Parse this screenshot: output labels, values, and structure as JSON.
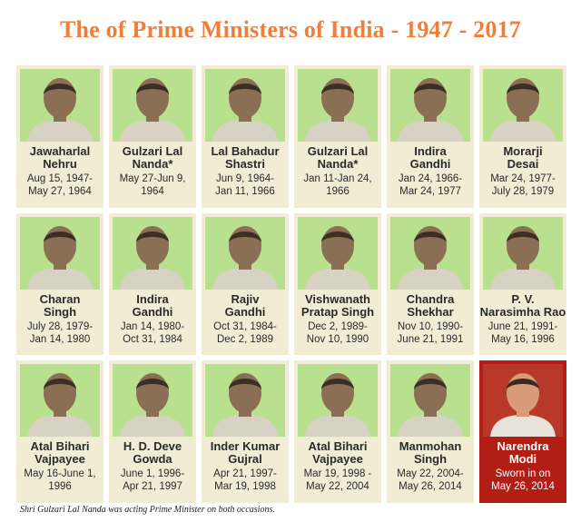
{
  "title": "The of Prime Ministers of India - 1947 - 2017",
  "footnote": "Shri Gulzari Lal Nanda was acting Prime Minister on both occasions.",
  "prime_ministers": [
    {
      "name": "Jawaharlal\nNehru",
      "dates": "Aug 15, 1947-\nMay 27, 1964"
    },
    {
      "name": "Gulzari Lal\nNanda*",
      "dates": "May 27-Jun 9,\n1964"
    },
    {
      "name": "Lal Bahadur\nShastri",
      "dates": "Jun 9, 1964-\nJan 11, 1966"
    },
    {
      "name": "Gulzari Lal\nNanda*",
      "dates": "Jan 11-Jan 24,\n1966"
    },
    {
      "name": "Indira\nGandhi",
      "dates": "Jan 24, 1966-\nMar 24, 1977"
    },
    {
      "name": "Morarji\nDesai",
      "dates": "Mar 24, 1977-\nJuly 28, 1979"
    },
    {
      "name": "Charan\nSingh",
      "dates": "July 28, 1979-\nJan 14, 1980"
    },
    {
      "name": "Indira\nGandhi",
      "dates": "Jan 14, 1980-\nOct 31, 1984"
    },
    {
      "name": "Rajiv\nGandhi",
      "dates": "Oct 31, 1984-\nDec 2, 1989"
    },
    {
      "name": "Vishwanath\nPratap Singh",
      "dates": "Dec 2, 1989-\nNov 10, 1990"
    },
    {
      "name": "Chandra\nShekhar",
      "dates": "Nov 10, 1990-\nJune 21, 1991"
    },
    {
      "name": "P. V.\nNarasimha Rao",
      "dates": "June 21, 1991-\nMay 16, 1996"
    },
    {
      "name": "Atal Bihari\nVajpayee",
      "dates": "May 16-June 1,\n1996"
    },
    {
      "name": "H. D. Deve\nGowda",
      "dates": "June 1, 1996-\nApr 21, 1997"
    },
    {
      "name": "Inder Kumar\nGujral",
      "dates": "Apr 21, 1997-\nMar 19, 1998"
    },
    {
      "name": "Atal Bihari\nVajpayee",
      "dates": "Mar 19, 1998 -\nMay 22, 2004"
    },
    {
      "name": "Manmohan\nSingh",
      "dates": "May 22, 2004-\nMay 26, 2014"
    },
    {
      "name": "Narendra\nModi",
      "dates": "Sworn in on\nMay 26, 2014"
    }
  ],
  "colors": {
    "title": "#ee7f3b",
    "card_background": "#f3ecd5",
    "photo_background": "#b9e08e",
    "highlight_card": "#b31e14"
  }
}
